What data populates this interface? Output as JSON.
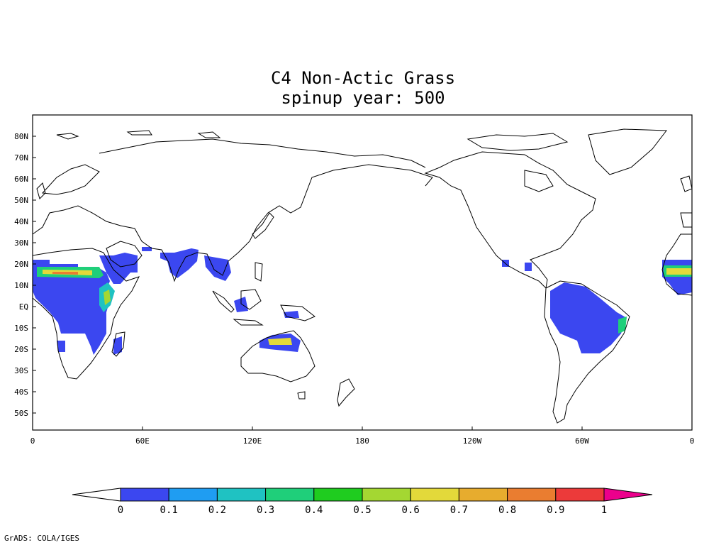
{
  "title": {
    "line1": "C4 Non-Actic Grass",
    "line2": "spinup year: 500"
  },
  "map": {
    "lat_labels": [
      "80N",
      "70N",
      "60N",
      "50N",
      "40N",
      "30N",
      "20N",
      "10N",
      "EQ",
      "10S",
      "20S",
      "30S",
      "40S",
      "50S"
    ],
    "lon_labels": [
      "0",
      "60E",
      "120E",
      "180",
      "120W",
      "60W",
      "0"
    ],
    "lat_range": [
      -58,
      90
    ],
    "lon_range": [
      0,
      360
    ],
    "field": "C4 Non-Actic Grass fraction",
    "coast_color": "#000000"
  },
  "colorbar": {
    "labels": [
      "0",
      "0.1",
      "0.2",
      "0.3",
      "0.4",
      "0.5",
      "0.6",
      "0.7",
      "0.8",
      "0.9",
      "1"
    ],
    "colors": [
      "#ffffff",
      "#3b47f0",
      "#1f9df2",
      "#1fc2c2",
      "#1fcf7a",
      "#1fcc1f",
      "#a4d732",
      "#e3d93a",
      "#e7ac2e",
      "#ea7d30",
      "#ec3a3a",
      "#ec008c"
    ]
  },
  "credit": "GrADS: COLA/IGES"
}
